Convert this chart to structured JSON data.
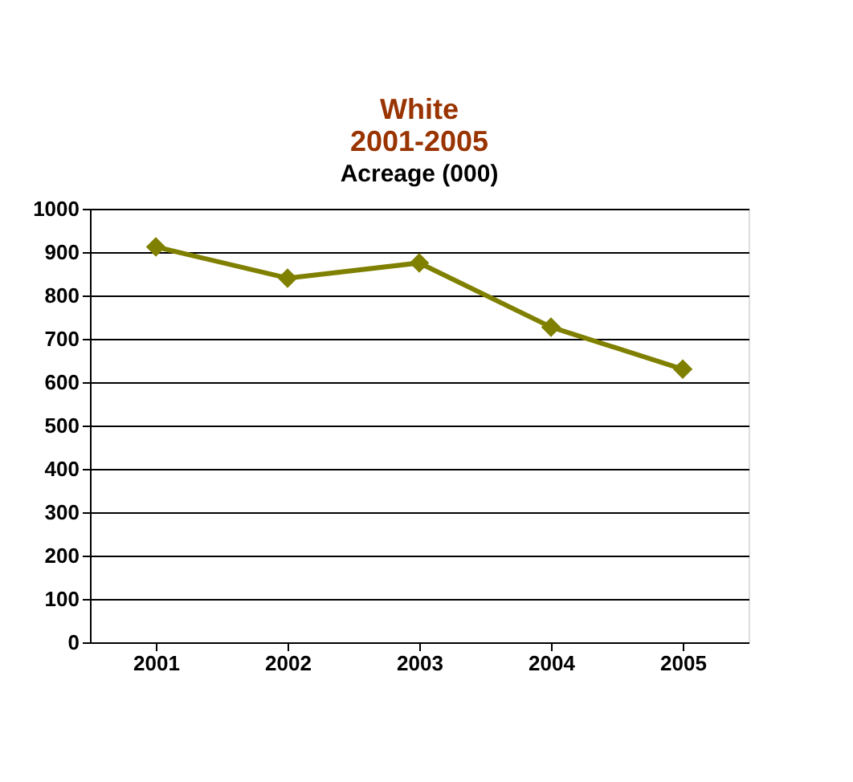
{
  "chart_data": {
    "type": "line",
    "title": [
      "White",
      "2001-2005"
    ],
    "subtitle": "Acreage (000)",
    "categories": [
      "2001",
      "2002",
      "2003",
      "2004",
      "2005"
    ],
    "series": [
      {
        "color": "#808000",
        "values": [
          912,
          840,
          875,
          727,
          630
        ]
      }
    ],
    "ylim": [
      0,
      1000
    ],
    "yticks": [
      0,
      100,
      200,
      300,
      400,
      500,
      600,
      700,
      800,
      900,
      1000
    ],
    "grid": "y",
    "marker": "diamond",
    "line_style": "solid"
  }
}
